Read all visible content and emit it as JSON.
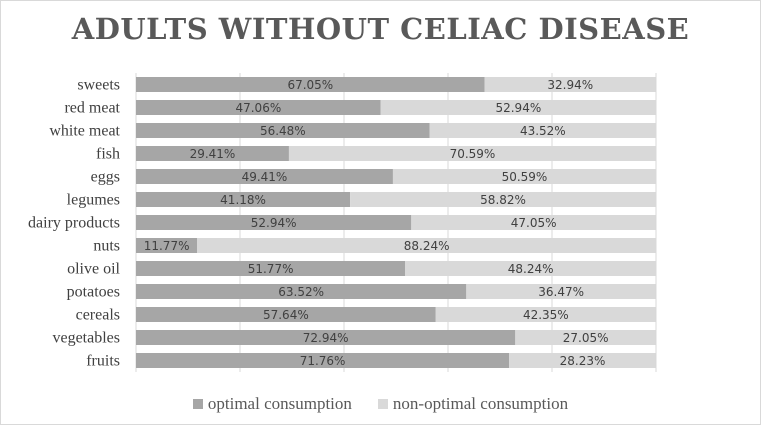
{
  "chart_data": {
    "type": "bar",
    "orientation": "horizontal",
    "stacked": true,
    "title": "ADULTS WITHOUT CELIAC DISEASE",
    "categories": [
      "sweets",
      "red meat",
      "white meat",
      "fish",
      "eggs",
      "legumes",
      "dairy products",
      "nuts",
      "olive oil",
      "potatoes",
      "cereals",
      "vegetables",
      "fruits"
    ],
    "series": [
      {
        "name": "optimal consumption",
        "color": "#a6a6a6",
        "values": [
          67.05,
          47.06,
          56.48,
          29.41,
          49.41,
          41.18,
          52.94,
          11.77,
          51.77,
          63.52,
          57.64,
          72.94,
          71.76
        ],
        "labels": [
          "67.05%",
          "47.06%",
          "56.48%",
          "29.41%",
          "49.41%",
          "41.18%",
          "52.94%",
          "11.77%",
          "51.77%",
          "63.52%",
          "57.64%",
          "72.94%",
          "71.76%"
        ]
      },
      {
        "name": "non-optimal consumption",
        "color": "#d9d9d9",
        "values": [
          32.94,
          52.94,
          43.52,
          70.59,
          50.59,
          58.82,
          47.05,
          88.24,
          48.24,
          36.47,
          42.35,
          27.05,
          28.23
        ],
        "labels": [
          "32.94%",
          "52.94%",
          "43.52%",
          "70.59%",
          "50.59%",
          "58.82%",
          "47.05%",
          "88.24%",
          "48.24%",
          "36.47%",
          "42.35%",
          "27.05%",
          "28.23%"
        ]
      }
    ],
    "xlim": [
      0,
      100
    ],
    "gridlines": true,
    "legend_position": "bottom"
  }
}
